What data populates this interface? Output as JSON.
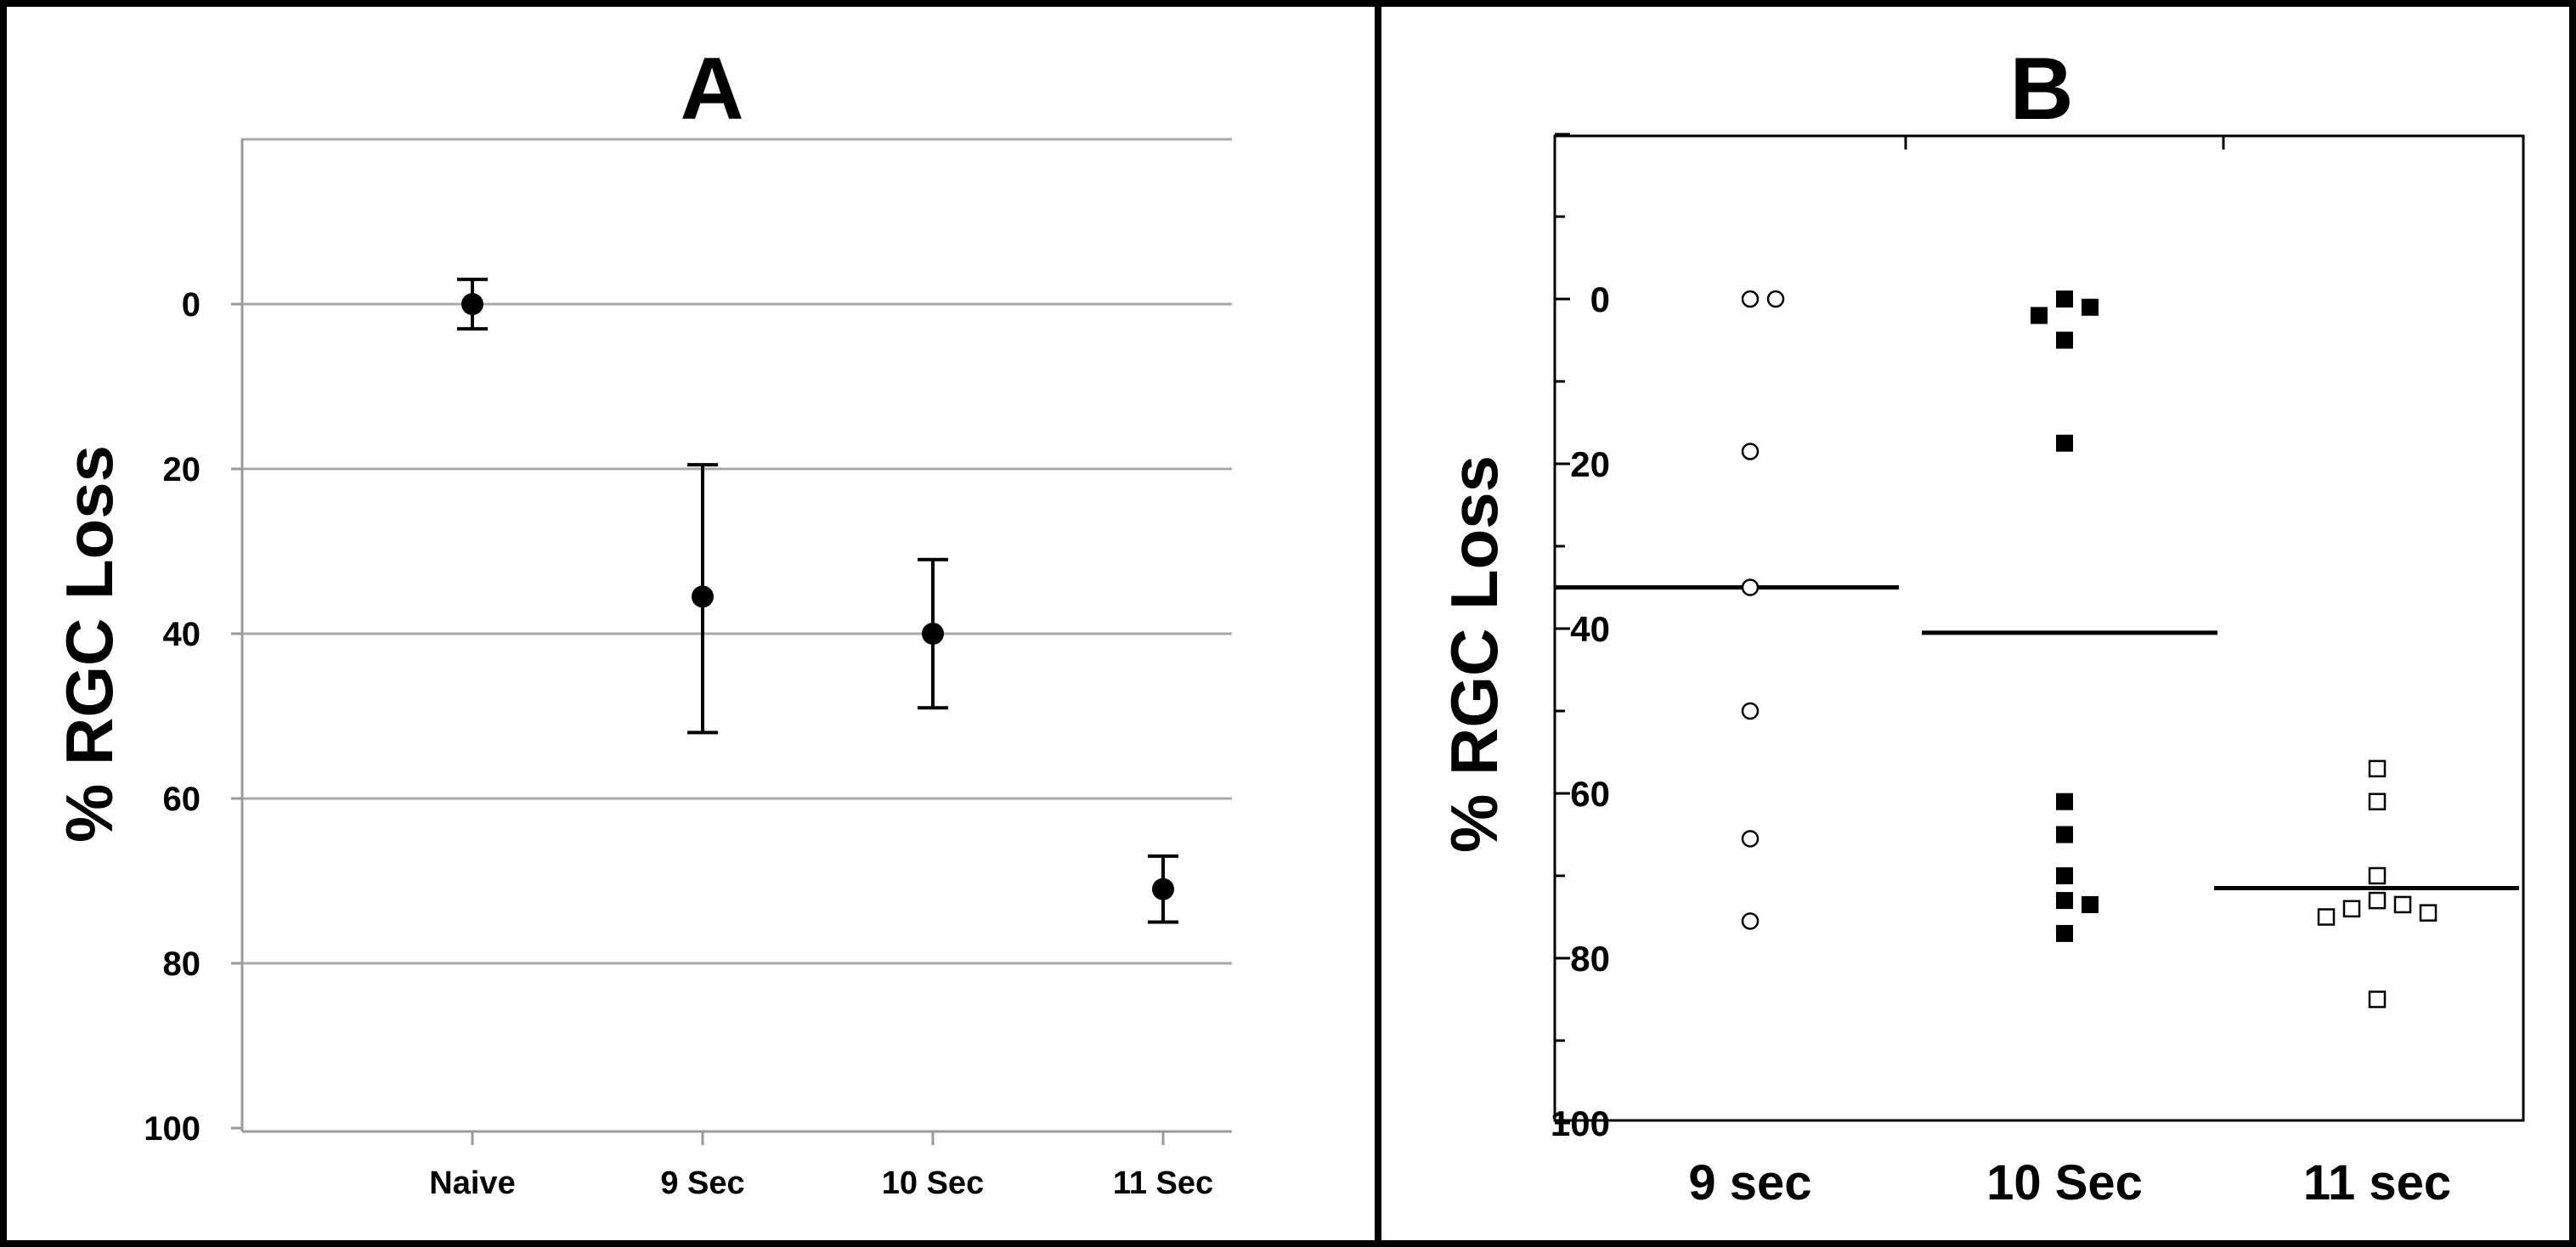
{
  "chart_data": [
    {
      "panel": "A",
      "type": "scatter",
      "title": "A",
      "ylabel": "% RGC Loss",
      "categories": [
        "Naive",
        "9 Sec",
        "10 Sec",
        "11 Sec"
      ],
      "yticks": [
        "0",
        "20",
        "40",
        "60",
        "80",
        "100"
      ],
      "ylim": [
        100,
        -20
      ],
      "y_inverted": true,
      "grid": true,
      "values": [
        0,
        35.5,
        40,
        71
      ],
      "err_low": [
        3,
        16,
        9,
        4
      ],
      "err_high": [
        3,
        16.5,
        9,
        4
      ]
    },
    {
      "panel": "B",
      "type": "scatter",
      "title": "B",
      "ylabel": "% RGC Loss",
      "categories": [
        "9 sec",
        "10 Sec",
        "11 sec"
      ],
      "yticks": [
        "0",
        "20",
        "40",
        "60",
        "80",
        "100"
      ],
      "ylim": [
        100,
        -20
      ],
      "y_inverted": true,
      "grid": false,
      "means": [
        35,
        40.5,
        71.5
      ],
      "points": [
        {
          "group": "9 sec",
          "marker": "open-circle",
          "y": [
            0,
            0,
            18.5,
            35,
            50,
            65.5,
            75.5
          ]
        },
        {
          "group": "10 Sec",
          "marker": "filled-square",
          "y": [
            0,
            1,
            2,
            5,
            17.5,
            61,
            65,
            70,
            73,
            73.5,
            77
          ]
        },
        {
          "group": "11 sec",
          "marker": "open-square",
          "y": [
            57,
            61,
            70,
            73,
            73.5,
            74,
            74.5,
            75,
            85
          ]
        }
      ]
    }
  ]
}
